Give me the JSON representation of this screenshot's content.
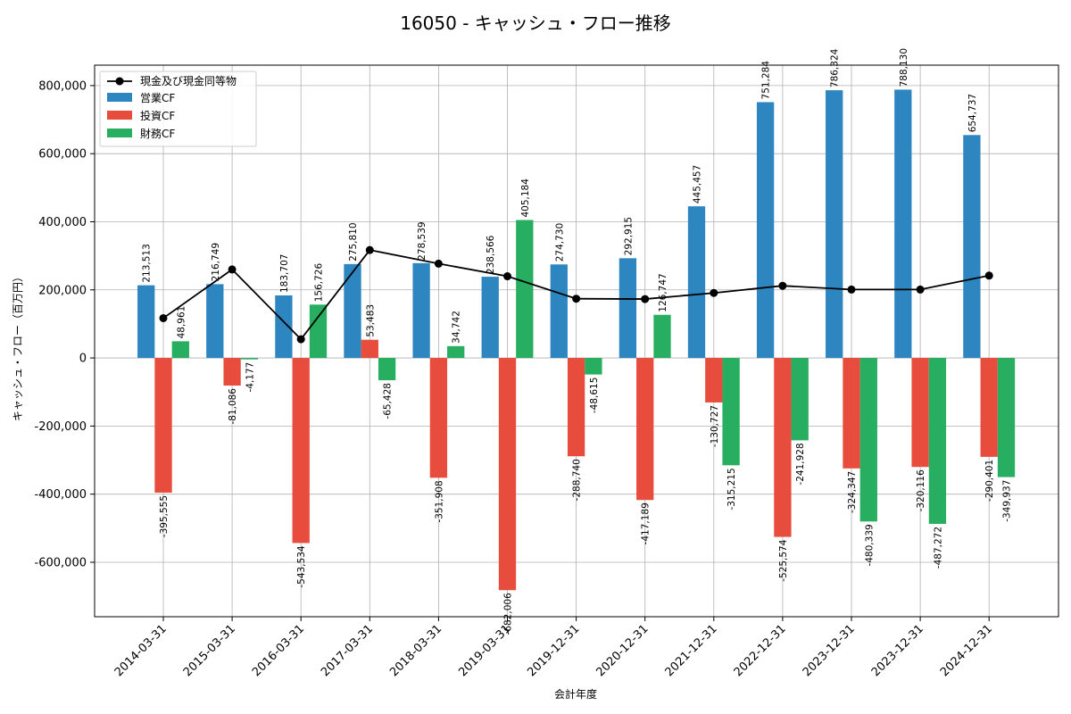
{
  "chart_data": {
    "type": "bar",
    "title": "16050 - キャッシュ・フロー推移",
    "xlabel": "会計年度",
    "ylabel": "キャッシュ・フロー（百万円）",
    "ylim": [
      -760000,
      860000
    ],
    "yticks": [
      -600000,
      -400000,
      -200000,
      0,
      200000,
      400000,
      600000,
      800000
    ],
    "ytick_labels": [
      "-600,000",
      "-400,000",
      "-200,000",
      "0",
      "200,000",
      "400,000",
      "600,000",
      "800,000"
    ],
    "grid": true,
    "legend_position": "top-left",
    "categories": [
      "2014-03-31",
      "2015-03-31",
      "2016-03-31",
      "2017-03-31",
      "2018-03-31",
      "2019-03-31",
      "2019-12-31",
      "2020-12-31",
      "2021-12-31",
      "2022-12-31",
      "2023-12-31",
      "2023-12-31",
      "2024-12-31"
    ],
    "series": [
      {
        "name": "営業CF",
        "kind": "bar",
        "color": "#2e86c1",
        "values": [
          213513,
          216749,
          183707,
          275810,
          278539,
          238566,
          274730,
          292915,
          445457,
          751284,
          786324,
          788130,
          654737
        ],
        "labels": [
          "213,513",
          "216,749",
          "183,707",
          "275,810",
          "278,539",
          "238,566",
          "274,730",
          "292,915",
          "445,457",
          "751,284",
          "786,324",
          "788,130",
          "654,737"
        ]
      },
      {
        "name": "投資CF",
        "kind": "bar",
        "color": "#e74c3c",
        "values": [
          -395555,
          -81086,
          -543534,
          53483,
          -351908,
          -682006,
          -288740,
          -417189,
          -130727,
          -525574,
          -324347,
          -320116,
          -290401
        ],
        "labels": [
          "-395,555",
          "-81,086",
          "-543,534",
          "53,483",
          "-351,908",
          "-682,006",
          "-288,740",
          "-417,189",
          "-130,727",
          "-525,574",
          "-324,347",
          "-320,116",
          "-290,401"
        ]
      },
      {
        "name": "財務CF",
        "kind": "bar",
        "color": "#27ae60",
        "values": [
          48961,
          -4177,
          156726,
          -65428,
          34742,
          405184,
          -48615,
          126747,
          -315215,
          -241928,
          -480339,
          -487272,
          -349937
        ],
        "labels": [
          "48,961",
          "-4,177",
          "156,726",
          "-65,428",
          "34,742",
          "405,184",
          "-48,615",
          "126,747",
          "-315,215",
          "-241,928",
          "-480,339",
          "-487,272",
          "-349,937"
        ]
      },
      {
        "name": "現金及び現金同等物",
        "kind": "line",
        "color": "#000000",
        "values": [
          117000,
          260000,
          55000,
          317000,
          277000,
          240000,
          174000,
          173000,
          191000,
          212000,
          201000,
          201000,
          242000
        ]
      }
    ]
  }
}
